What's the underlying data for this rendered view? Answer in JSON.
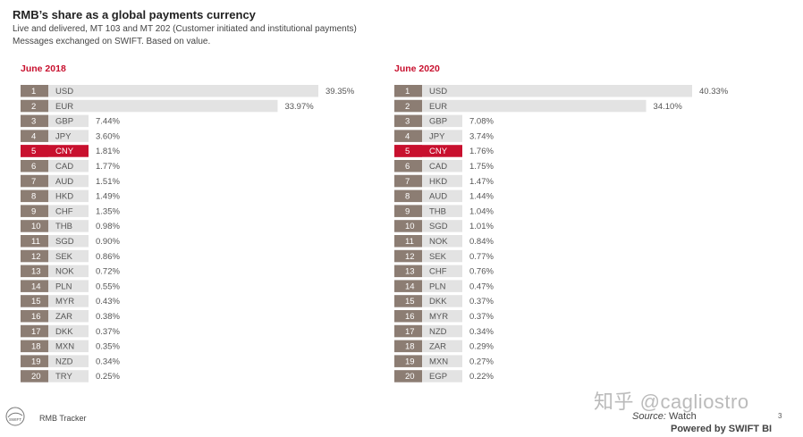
{
  "header": {
    "title": "RMB’s share as a global payments currency",
    "subtitle_line1": "Live and delivered,  MT 103 and MT 202 (Customer initiated and institutional payments)",
    "subtitle_line2": "Messages exchanged on SWIFT. Based on value."
  },
  "colors": {
    "bar": "#e3e3e3",
    "rank": "#8c7d73",
    "highlight": "#c8102e"
  },
  "chart_data": [
    {
      "type": "bar",
      "title": "June 2018",
      "highlight_rank": 5,
      "ranks": [
        "1",
        "2",
        "3",
        "4",
        "5",
        "6",
        "7",
        "8",
        "9",
        "10",
        "11",
        "12",
        "13",
        "14",
        "15",
        "16",
        "17",
        "18",
        "19",
        "20"
      ],
      "categories": [
        "USD",
        "EUR",
        "GBP",
        "JPY",
        "CNY",
        "CAD",
        "AUD",
        "HKD",
        "CHF",
        "THB",
        "SGD",
        "SEK",
        "NOK",
        "PLN",
        "MYR",
        "ZAR",
        "DKK",
        "MXN",
        "NZD",
        "TRY"
      ],
      "values": [
        39.35,
        33.97,
        7.44,
        3.6,
        1.81,
        1.77,
        1.51,
        1.49,
        1.35,
        0.98,
        0.9,
        0.86,
        0.72,
        0.55,
        0.43,
        0.38,
        0.37,
        0.35,
        0.34,
        0.25
      ],
      "labels": [
        "39.35%",
        "33.97%",
        "7.44%",
        "3.60%",
        "1.81%",
        "1.77%",
        "1.51%",
        "1.49%",
        "1.35%",
        "0.98%",
        "0.90%",
        "0.86%",
        "0.72%",
        "0.55%",
        "0.43%",
        "0.38%",
        "0.37%",
        "0.35%",
        "0.34%",
        "0.25%"
      ]
    },
    {
      "type": "bar",
      "title": "June 2020",
      "highlight_rank": 5,
      "ranks": [
        "1",
        "2",
        "3",
        "4",
        "5",
        "6",
        "7",
        "8",
        "9",
        "10",
        "11",
        "12",
        "13",
        "14",
        "15",
        "16",
        "17",
        "18",
        "19",
        "20"
      ],
      "categories": [
        "USD",
        "EUR",
        "GBP",
        "JPY",
        "CNY",
        "CAD",
        "HKD",
        "AUD",
        "THB",
        "SGD",
        "NOK",
        "SEK",
        "CHF",
        "PLN",
        "DKK",
        "MYR",
        "NZD",
        "ZAR",
        "MXN",
        "EGP"
      ],
      "values": [
        40.33,
        34.1,
        7.08,
        3.74,
        1.76,
        1.75,
        1.47,
        1.44,
        1.04,
        1.01,
        0.84,
        0.77,
        0.76,
        0.47,
        0.37,
        0.37,
        0.34,
        0.29,
        0.27,
        0.22
      ],
      "labels": [
        "40.33%",
        "34.10%",
        "7.08%",
        "3.74%",
        "1.76%",
        "1.75%",
        "1.47%",
        "1.44%",
        "1.04%",
        "1.01%",
        "0.84%",
        "0.77%",
        "0.76%",
        "0.47%",
        "0.37%",
        "0.37%",
        "0.34%",
        "0.29%",
        "0.27%",
        "0.22%"
      ]
    }
  ],
  "footer": {
    "logo_icon": "swift-logo-icon",
    "logo_text": "SWIFT",
    "tracker": "RMB Tracker",
    "page": "3",
    "watermark": "知乎 @cagliostro",
    "source_label": "Source:",
    "source_value": " Watch",
    "powered": "Powered by SWIFT BI"
  }
}
